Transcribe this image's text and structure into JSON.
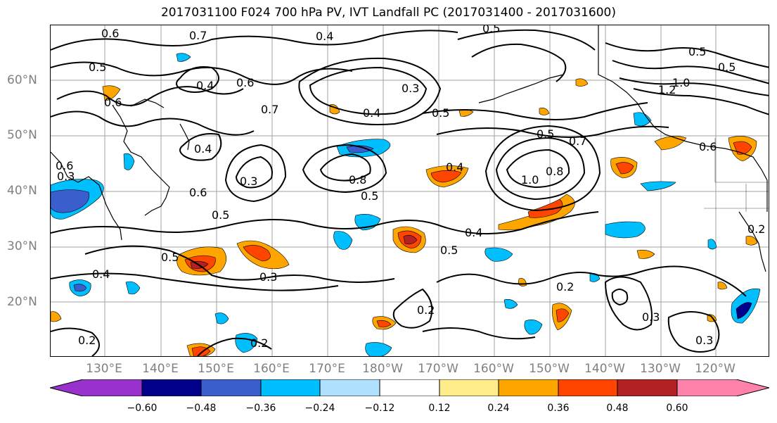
{
  "title": "2017031100 F024 700 hPa PV, IVT Landfall PC (2017031400 - 2017031600)",
  "lat_labels": [
    "60°N",
    "50°N",
    "40°N",
    "30°N",
    "20°N"
  ],
  "lon_labels": [
    "130°E",
    "140°E",
    "150°E",
    "160°E",
    "170°E",
    "180°W",
    "170°W",
    "160°W",
    "150°W",
    "140°W",
    "130°W",
    "120°W"
  ],
  "contour_labels": [
    "0.6",
    "0.7",
    "0.4",
    "0.5",
    "0.5",
    "0.6",
    "0.4",
    "0.6",
    "0.3",
    "0.7",
    "0.5",
    "0.4",
    "0.5",
    "1.2",
    "1.0",
    "0.5",
    "0.7",
    "0.6",
    "0.4",
    "0.8",
    "1.0",
    "0.8",
    "0.4",
    "0.3",
    "0.6",
    "0.5",
    "0.3",
    "0.5",
    "0.6",
    "0.5",
    "0.4",
    "0.5",
    "0.5",
    "0.4",
    "0.3",
    "0.2",
    "0.2",
    "0.3",
    "0.3",
    "0.2",
    "0.2",
    "0.2"
  ],
  "colorbar": {
    "ticks": [
      "−0.60",
      "−0.48",
      "−0.36",
      "−0.24",
      "−0.12",
      "0.12",
      "0.24",
      "0.36",
      "0.48",
      "0.60"
    ],
    "colors": [
      "#9932CC",
      "#00008B",
      "#3A5FCD",
      "#00BFFF",
      "#B0E2FF",
      "#FFFFFF",
      "#FFEC8B",
      "#FFA500",
      "#FF4500",
      "#B22222",
      "#FF82AB"
    ]
  }
}
